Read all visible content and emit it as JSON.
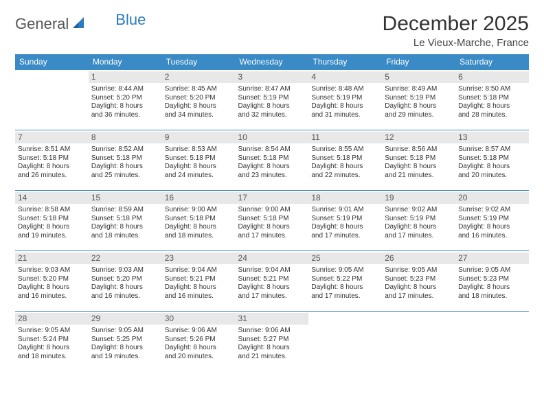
{
  "logo": {
    "text1": "General",
    "text2": "Blue"
  },
  "title": "December 2025",
  "location": "Le Vieux-Marche, France",
  "colors": {
    "header_bg": "#3a8ac6",
    "header_text": "#ffffff",
    "daynum_bg": "#e8e8e8",
    "border": "#3a8ac6",
    "logo_gray": "#555555",
    "logo_blue": "#2a7bbf"
  },
  "day_headers": [
    "Sunday",
    "Monday",
    "Tuesday",
    "Wednesday",
    "Thursday",
    "Friday",
    "Saturday"
  ],
  "weeks": [
    [
      {
        "n": "",
        "lines": []
      },
      {
        "n": "1",
        "lines": [
          "Sunrise: 8:44 AM",
          "Sunset: 5:20 PM",
          "Daylight: 8 hours",
          "and 36 minutes."
        ]
      },
      {
        "n": "2",
        "lines": [
          "Sunrise: 8:45 AM",
          "Sunset: 5:20 PM",
          "Daylight: 8 hours",
          "and 34 minutes."
        ]
      },
      {
        "n": "3",
        "lines": [
          "Sunrise: 8:47 AM",
          "Sunset: 5:19 PM",
          "Daylight: 8 hours",
          "and 32 minutes."
        ]
      },
      {
        "n": "4",
        "lines": [
          "Sunrise: 8:48 AM",
          "Sunset: 5:19 PM",
          "Daylight: 8 hours",
          "and 31 minutes."
        ]
      },
      {
        "n": "5",
        "lines": [
          "Sunrise: 8:49 AM",
          "Sunset: 5:19 PM",
          "Daylight: 8 hours",
          "and 29 minutes."
        ]
      },
      {
        "n": "6",
        "lines": [
          "Sunrise: 8:50 AM",
          "Sunset: 5:18 PM",
          "Daylight: 8 hours",
          "and 28 minutes."
        ]
      }
    ],
    [
      {
        "n": "7",
        "lines": [
          "Sunrise: 8:51 AM",
          "Sunset: 5:18 PM",
          "Daylight: 8 hours",
          "and 26 minutes."
        ]
      },
      {
        "n": "8",
        "lines": [
          "Sunrise: 8:52 AM",
          "Sunset: 5:18 PM",
          "Daylight: 8 hours",
          "and 25 minutes."
        ]
      },
      {
        "n": "9",
        "lines": [
          "Sunrise: 8:53 AM",
          "Sunset: 5:18 PM",
          "Daylight: 8 hours",
          "and 24 minutes."
        ]
      },
      {
        "n": "10",
        "lines": [
          "Sunrise: 8:54 AM",
          "Sunset: 5:18 PM",
          "Daylight: 8 hours",
          "and 23 minutes."
        ]
      },
      {
        "n": "11",
        "lines": [
          "Sunrise: 8:55 AM",
          "Sunset: 5:18 PM",
          "Daylight: 8 hours",
          "and 22 minutes."
        ]
      },
      {
        "n": "12",
        "lines": [
          "Sunrise: 8:56 AM",
          "Sunset: 5:18 PM",
          "Daylight: 8 hours",
          "and 21 minutes."
        ]
      },
      {
        "n": "13",
        "lines": [
          "Sunrise: 8:57 AM",
          "Sunset: 5:18 PM",
          "Daylight: 8 hours",
          "and 20 minutes."
        ]
      }
    ],
    [
      {
        "n": "14",
        "lines": [
          "Sunrise: 8:58 AM",
          "Sunset: 5:18 PM",
          "Daylight: 8 hours",
          "and 19 minutes."
        ]
      },
      {
        "n": "15",
        "lines": [
          "Sunrise: 8:59 AM",
          "Sunset: 5:18 PM",
          "Daylight: 8 hours",
          "and 18 minutes."
        ]
      },
      {
        "n": "16",
        "lines": [
          "Sunrise: 9:00 AM",
          "Sunset: 5:18 PM",
          "Daylight: 8 hours",
          "and 18 minutes."
        ]
      },
      {
        "n": "17",
        "lines": [
          "Sunrise: 9:00 AM",
          "Sunset: 5:18 PM",
          "Daylight: 8 hours",
          "and 17 minutes."
        ]
      },
      {
        "n": "18",
        "lines": [
          "Sunrise: 9:01 AM",
          "Sunset: 5:19 PM",
          "Daylight: 8 hours",
          "and 17 minutes."
        ]
      },
      {
        "n": "19",
        "lines": [
          "Sunrise: 9:02 AM",
          "Sunset: 5:19 PM",
          "Daylight: 8 hours",
          "and 17 minutes."
        ]
      },
      {
        "n": "20",
        "lines": [
          "Sunrise: 9:02 AM",
          "Sunset: 5:19 PM",
          "Daylight: 8 hours",
          "and 16 minutes."
        ]
      }
    ],
    [
      {
        "n": "21",
        "lines": [
          "Sunrise: 9:03 AM",
          "Sunset: 5:20 PM",
          "Daylight: 8 hours",
          "and 16 minutes."
        ]
      },
      {
        "n": "22",
        "lines": [
          "Sunrise: 9:03 AM",
          "Sunset: 5:20 PM",
          "Daylight: 8 hours",
          "and 16 minutes."
        ]
      },
      {
        "n": "23",
        "lines": [
          "Sunrise: 9:04 AM",
          "Sunset: 5:21 PM",
          "Daylight: 8 hours",
          "and 16 minutes."
        ]
      },
      {
        "n": "24",
        "lines": [
          "Sunrise: 9:04 AM",
          "Sunset: 5:21 PM",
          "Daylight: 8 hours",
          "and 17 minutes."
        ]
      },
      {
        "n": "25",
        "lines": [
          "Sunrise: 9:05 AM",
          "Sunset: 5:22 PM",
          "Daylight: 8 hours",
          "and 17 minutes."
        ]
      },
      {
        "n": "26",
        "lines": [
          "Sunrise: 9:05 AM",
          "Sunset: 5:23 PM",
          "Daylight: 8 hours",
          "and 17 minutes."
        ]
      },
      {
        "n": "27",
        "lines": [
          "Sunrise: 9:05 AM",
          "Sunset: 5:23 PM",
          "Daylight: 8 hours",
          "and 18 minutes."
        ]
      }
    ],
    [
      {
        "n": "28",
        "lines": [
          "Sunrise: 9:05 AM",
          "Sunset: 5:24 PM",
          "Daylight: 8 hours",
          "and 18 minutes."
        ]
      },
      {
        "n": "29",
        "lines": [
          "Sunrise: 9:05 AM",
          "Sunset: 5:25 PM",
          "Daylight: 8 hours",
          "and 19 minutes."
        ]
      },
      {
        "n": "30",
        "lines": [
          "Sunrise: 9:06 AM",
          "Sunset: 5:26 PM",
          "Daylight: 8 hours",
          "and 20 minutes."
        ]
      },
      {
        "n": "31",
        "lines": [
          "Sunrise: 9:06 AM",
          "Sunset: 5:27 PM",
          "Daylight: 8 hours",
          "and 21 minutes."
        ]
      },
      {
        "n": "",
        "lines": []
      },
      {
        "n": "",
        "lines": []
      },
      {
        "n": "",
        "lines": []
      }
    ]
  ]
}
